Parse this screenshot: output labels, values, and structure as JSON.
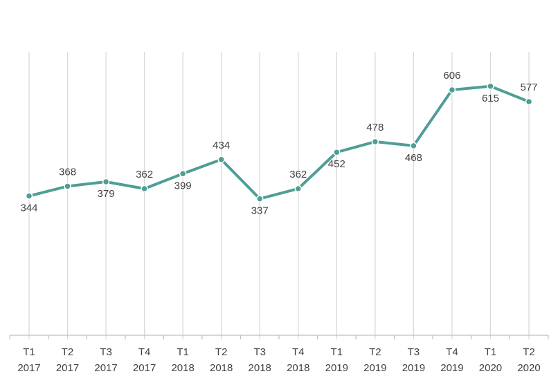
{
  "chart_data": {
    "type": "line",
    "categories": [
      [
        "T1",
        "2017"
      ],
      [
        "T2",
        "2017"
      ],
      [
        "T3",
        "2017"
      ],
      [
        "T4",
        "2017"
      ],
      [
        "T1",
        "2018"
      ],
      [
        "T2",
        "2018"
      ],
      [
        "T3",
        "2018"
      ],
      [
        "T4",
        "2018"
      ],
      [
        "T1",
        "2019"
      ],
      [
        "T2",
        "2019"
      ],
      [
        "T3",
        "2019"
      ],
      [
        "T4",
        "2019"
      ],
      [
        "T1",
        "2020"
      ],
      [
        "T2",
        "2020"
      ]
    ],
    "values": [
      344,
      368,
      379,
      362,
      399,
      434,
      337,
      362,
      452,
      478,
      468,
      606,
      615,
      577
    ],
    "color": "#4e9e96",
    "ylim": [
      0,
      700
    ],
    "grid": true
  }
}
